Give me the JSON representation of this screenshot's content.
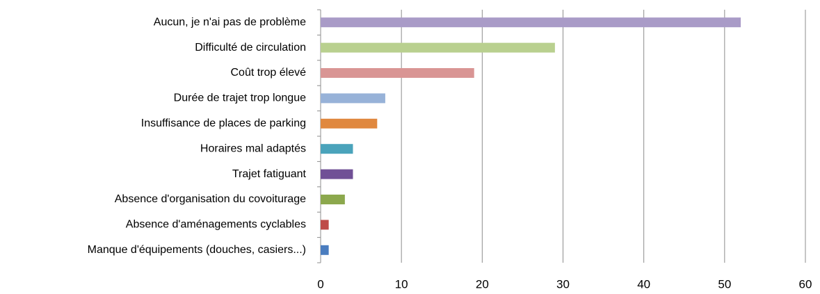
{
  "chart_data": {
    "type": "barh",
    "categories": [
      "Aucun, je n'ai pas de problème",
      "Difficulté de circulation",
      "Coût trop élevé",
      "Durée de trajet trop longue",
      "Insuffisance de places de parking",
      "Horaires mal adaptés",
      "Trajet fatiguant",
      "Absence d'organisation du covoiturage",
      "Absence d'aménagements cyclables",
      "Manque d'équipements (douches, casiers...)"
    ],
    "values": [
      52,
      29,
      19,
      8,
      7,
      4,
      4,
      3,
      1,
      1
    ],
    "colors": [
      "#a99bc7",
      "#b9d08f",
      "#d99594",
      "#97b2d8",
      "#e0883f",
      "#4aa3bb",
      "#705096",
      "#8ca84d",
      "#be4b48",
      "#4a7dbf"
    ],
    "xlim": [
      0,
      60
    ],
    "xticks": [
      0,
      10,
      20,
      30,
      40,
      50,
      60
    ],
    "grid": true
  }
}
